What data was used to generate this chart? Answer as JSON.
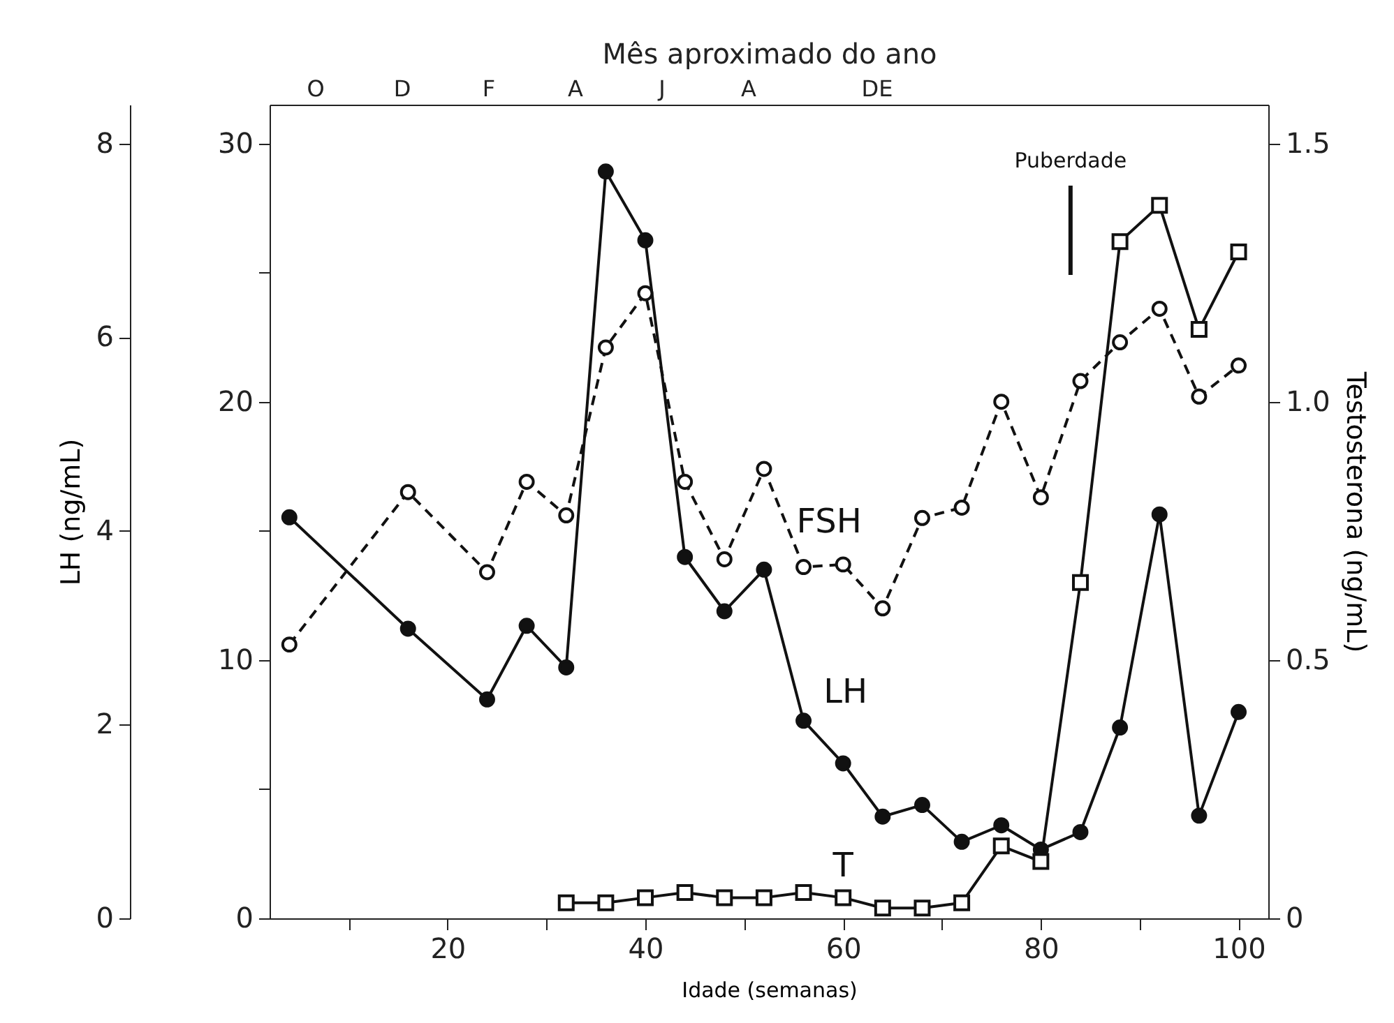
{
  "chart_data": {
    "type": "line",
    "xlabel": "Idade (semanas)",
    "ylabel": "LH (ng/mL)",
    "y2label": "Testosterona (ng/mL)",
    "x2label": "Mês aproximado do ano",
    "xlim": [
      2,
      103
    ],
    "xticks": [
      {
        "value": 10,
        "label": null
      },
      20,
      {
        "value": 30,
        "label": null
      },
      40,
      {
        "value": 50,
        "label": null
      },
      60,
      {
        "value": 70,
        "label": null
      },
      80,
      {
        "value": 90,
        "label": null
      },
      100
    ],
    "ylim": [
      0,
      8.4
    ],
    "yticks": [
      0,
      2,
      4,
      6,
      8
    ],
    "y3lim": [
      0,
      31.5
    ],
    "y3ticks": [
      0,
      {
        "value": 5,
        "label": null
      },
      10,
      {
        "value": 15,
        "label": null
      },
      20,
      {
        "value": 25,
        "label": null
      },
      30
    ],
    "y2lim": [
      0,
      1.575
    ],
    "y2ticks": [
      0,
      0.5,
      {
        "value": 1,
        "label": "1.0"
      },
      1.5
    ],
    "grid": false,
    "series": [
      {
        "name": "LH",
        "axis": "y",
        "color": "#111111",
        "marker": "circle",
        "line_style": "solid",
        "x": [
          4,
          16,
          24,
          28,
          32,
          36,
          40,
          44,
          48,
          52,
          56,
          60,
          64,
          68,
          72,
          76,
          80,
          84,
          88,
          92,
          96,
          100
        ],
        "values": [
          4.14,
          2.99,
          2.26,
          3.02,
          2.59,
          7.71,
          7.0,
          3.73,
          3.17,
          3.6,
          2.04,
          1.6,
          1.05,
          1.17,
          0.79,
          0.96,
          0.71,
          0.89,
          1.97,
          4.17,
          1.06,
          2.13
        ]
      },
      {
        "name": "FSH",
        "axis": "y3",
        "color": "#111111",
        "marker": "circle",
        "line_style": "dashed",
        "x": [
          4,
          16,
          24,
          28,
          32,
          36,
          40,
          44,
          48,
          52,
          56,
          60,
          64,
          68,
          72,
          76,
          80,
          84,
          88,
          92,
          96,
          100
        ],
        "values": [
          10.6,
          16.5,
          13.4,
          16.9,
          15.6,
          22.1,
          24.2,
          16.9,
          13.9,
          17.4,
          13.6,
          13.7,
          12.0,
          15.5,
          15.9,
          20.0,
          16.3,
          20.8,
          22.3,
          23.6,
          20.2,
          21.4
        ]
      },
      {
        "name": "T",
        "axis": "y2",
        "color": "#111111",
        "marker": "square",
        "line_style": "solid",
        "x": [
          32,
          36,
          40,
          44,
          48,
          52,
          56,
          60,
          64,
          68,
          72,
          76,
          80,
          84,
          88,
          92,
          96,
          100
        ],
        "values": [
          0.03,
          0.03,
          0.04,
          0.05,
          0.04,
          0.04,
          0.05,
          0.04,
          0.02,
          0.02,
          0.03,
          0.14,
          0.11,
          0.65,
          1.31,
          1.38,
          1.14,
          1.29
        ]
      }
    ],
    "ref_lines": [
      {
        "axis": "x",
        "value": 83,
        "label": "Puberdade",
        "color": "#111111"
      }
    ],
    "annotations": [
      "O",
      "D",
      "F",
      "A",
      "J",
      "A",
      "DE"
    ]
  }
}
